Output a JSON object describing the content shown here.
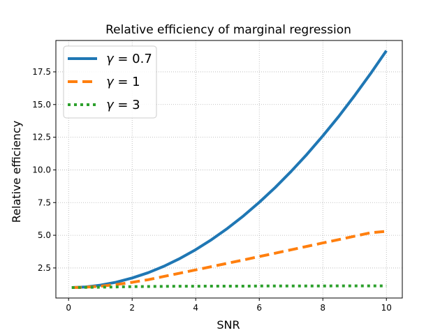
{
  "chart_data": {
    "type": "line",
    "title": "Relative efficiency of marginal regression",
    "xlabel": "SNR",
    "ylabel": "Relative efficiency",
    "xlim": [
      -0.4,
      10.5
    ],
    "ylim": [
      0.2,
      19.9
    ],
    "xticks": [
      0,
      2,
      4,
      6,
      8,
      10
    ],
    "xtick_labels": [
      "0",
      "2",
      "4",
      "6",
      "8",
      "10"
    ],
    "yticks": [
      2.5,
      5.0,
      7.5,
      10.0,
      12.5,
      15.0,
      17.5
    ],
    "ytick_labels": [
      "2.5",
      "5.0",
      "7.5",
      "10.0",
      "12.5",
      "15.0",
      "17.5"
    ],
    "grid": true,
    "legend_position": "top-left",
    "x": [
      0.1,
      0.5,
      1,
      1.5,
      2,
      2.5,
      3,
      3.5,
      4,
      4.5,
      5,
      5.5,
      6,
      6.5,
      7,
      7.5,
      8,
      8.5,
      9,
      9.5,
      10
    ],
    "series": [
      {
        "name": "γ = 0.7",
        "name_symbol": "γ",
        "name_value": " = 0.7",
        "color": "#1f77b4",
        "style": "solid",
        "values": [
          1.0,
          1.04,
          1.18,
          1.41,
          1.73,
          2.13,
          2.63,
          3.22,
          3.9,
          4.67,
          5.53,
          6.48,
          7.52,
          8.65,
          9.88,
          11.19,
          12.6,
          14.09,
          15.68,
          17.36,
          19.12
        ]
      },
      {
        "name": "γ = 1",
        "name_symbol": "γ",
        "name_value": " = 1",
        "color": "#ff7f0e",
        "style": "dashed",
        "values": [
          1.0,
          1.02,
          1.1,
          1.23,
          1.4,
          1.6,
          1.85,
          2.1,
          2.35,
          2.6,
          2.86,
          3.11,
          3.37,
          3.63,
          3.89,
          4.15,
          4.41,
          4.67,
          4.93,
          5.19,
          5.3
        ]
      },
      {
        "name": "γ = 3",
        "name_symbol": "γ",
        "name_value": " = 3",
        "color": "#2ca02c",
        "style": "dotted",
        "values": [
          1.0,
          1.01,
          1.03,
          1.05,
          1.07,
          1.08,
          1.09,
          1.1,
          1.1,
          1.11,
          1.11,
          1.11,
          1.12,
          1.12,
          1.12,
          1.12,
          1.12,
          1.13,
          1.13,
          1.13,
          1.13
        ]
      }
    ]
  }
}
